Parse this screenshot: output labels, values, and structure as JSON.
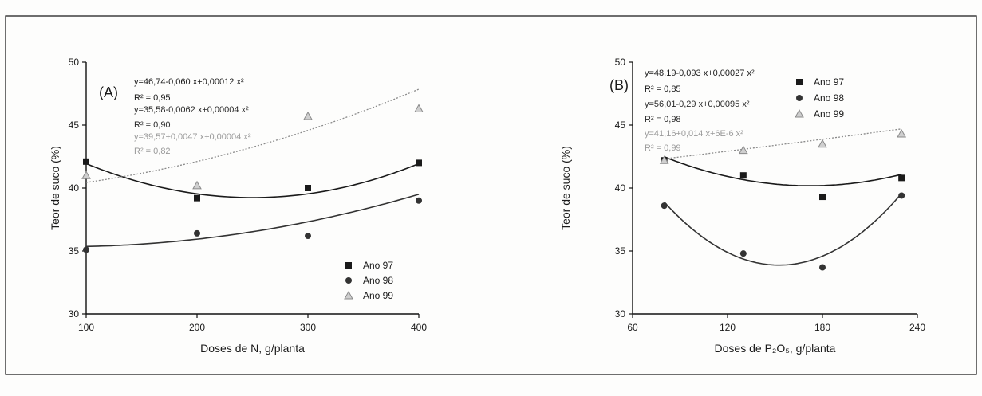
{
  "colors": {
    "background": "#fdfdfc",
    "frame": "#222222",
    "axis": "#111111"
  },
  "chart_data": [
    {
      "type": "scatter",
      "panel_label": "(A)",
      "xlabel": "Doses de N, g/planta",
      "ylabel": "Teor de suco (%)",
      "xlim": [
        100,
        400
      ],
      "ylim": [
        30,
        50
      ],
      "xticks": [
        100,
        200,
        300,
        400
      ],
      "yticks": [
        30,
        35,
        40,
        45,
        50
      ],
      "grid": false,
      "legend": "bottom-right",
      "series": [
        {
          "name": "Ano 97",
          "marker": "square",
          "color": "#1a1a1a",
          "line": "solid",
          "x": [
            100,
            200,
            300,
            400
          ],
          "y": [
            42.1,
            39.2,
            40.0,
            42.0
          ],
          "fit": {
            "equation": "y=46,74-0,060 x+0,00012 x²",
            "r2": "R² = 0,95",
            "coefficients": [
              46.74,
              -0.06,
              0.00012
            ],
            "text_color": "#1a1a1a"
          }
        },
        {
          "name": "Ano 98",
          "marker": "circle",
          "color": "#333333",
          "line": "solid",
          "x": [
            100,
            200,
            300,
            400
          ],
          "y": [
            35.1,
            36.4,
            36.2,
            39.0
          ],
          "fit": {
            "equation": "y=35,58-0,0062 x+0,00004 x²",
            "r2": "R² = 0,90",
            "coefficients": [
              35.58,
              -0.0062,
              4e-05
            ],
            "text_color": "#2a2a2a"
          }
        },
        {
          "name": "Ano 99",
          "marker": "triangle",
          "color": "#8a8a8a",
          "line": "dotted",
          "x": [
            100,
            200,
            300,
            400
          ],
          "y": [
            41.0,
            40.2,
            45.7,
            46.3
          ],
          "fit": {
            "equation": "y=39,57+0,0047 x+0,00004 x²",
            "r2": "R² = 0,82",
            "coefficients": [
              39.57,
              0.0047,
              4e-05
            ],
            "text_color": "#9a9a9a"
          }
        }
      ]
    },
    {
      "type": "scatter",
      "panel_label": "(B)",
      "xlabel": "Doses de P₂O₅, g/planta",
      "ylabel": "Teor de suco (%)",
      "xlim": [
        60,
        240
      ],
      "ylim": [
        30,
        50
      ],
      "xticks": [
        60,
        120,
        180,
        240
      ],
      "yticks": [
        30,
        35,
        40,
        45,
        50
      ],
      "grid": false,
      "legend": "top",
      "series": [
        {
          "name": "Ano 97",
          "marker": "square",
          "color": "#1a1a1a",
          "line": "solid",
          "x": [
            80,
            130,
            180,
            230
          ],
          "y": [
            42.2,
            41.0,
            39.3,
            40.8
          ],
          "fit": {
            "equation": "y=48,19-0,093 x+0,00027 x²",
            "r2": "R² = 0,85",
            "coefficients": [
              48.19,
              -0.093,
              0.00027
            ],
            "text_color": "#1a1a1a"
          }
        },
        {
          "name": "Ano 98",
          "marker": "circle",
          "color": "#333333",
          "line": "solid",
          "x": [
            80,
            130,
            180,
            230
          ],
          "y": [
            38.6,
            34.8,
            33.7,
            39.4
          ],
          "fit": {
            "equation": "y=56,01-0,29 x+0,00095 x²",
            "r2": "R² = 0,98",
            "coefficients": [
              56.01,
              -0.29,
              0.00095
            ],
            "text_color": "#2a2a2a"
          }
        },
        {
          "name": "Ano 99",
          "marker": "triangle",
          "color": "#8a8a8a",
          "line": "dotted",
          "x": [
            80,
            130,
            180,
            230
          ],
          "y": [
            42.2,
            43.0,
            43.5,
            44.3
          ],
          "fit": {
            "equation": "y=41,16+0,014 x+6E-6 x²",
            "r2": "R² = 0,99",
            "coefficients": [
              41.16,
              0.014,
              6e-06
            ],
            "text_color": "#9a9a9a"
          }
        }
      ]
    }
  ]
}
